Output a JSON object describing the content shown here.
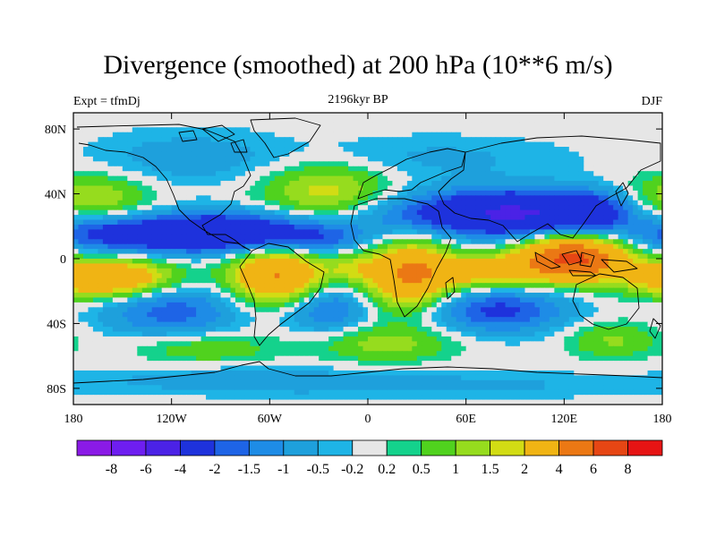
{
  "title": "Divergence (smoothed) at 200 hPa (10**6 m/s)",
  "subtitle_left": "Expt = tfmDj",
  "subtitle_center": "2196kyr BP",
  "subtitle_right": "DJF",
  "lat_ticks": [
    {
      "value": 80,
      "label": "80N"
    },
    {
      "value": 40,
      "label": "40N"
    },
    {
      "value": 0,
      "label": "0"
    },
    {
      "value": -40,
      "label": "40S"
    },
    {
      "value": -80,
      "label": "80S"
    }
  ],
  "lon_ticks": [
    {
      "value": -180,
      "label": "180"
    },
    {
      "value": -120,
      "label": "120W"
    },
    {
      "value": -60,
      "label": "60W"
    },
    {
      "value": 0,
      "label": "0"
    },
    {
      "value": 60,
      "label": "60E"
    },
    {
      "value": 120,
      "label": "120E"
    },
    {
      "value": 180,
      "label": "180"
    }
  ],
  "colorbar": {
    "colors": [
      "#8a1ae6",
      "#6e1ef0",
      "#4b22e6",
      "#1e32dc",
      "#1e64e6",
      "#1e8ce6",
      "#1ea0dc",
      "#1eb4e6",
      "#e6e6e6",
      "#14d28c",
      "#50d21e",
      "#96dc1e",
      "#d2dc14",
      "#f0b414",
      "#eb7814",
      "#e64614",
      "#e61414"
    ],
    "labels": [
      "-8",
      "-6",
      "-4",
      "-2",
      "-1.5",
      "-1",
      "-0.5",
      "-0.2",
      "0.2",
      "0.5",
      "1",
      "1.5",
      "2",
      "4",
      "6",
      "8"
    ]
  },
  "chart_data": {
    "type": "heatmap",
    "title": "Divergence (smoothed) at 200 hPa (10**6 m/s)",
    "variable": "divergence at 200 hPa",
    "units": "10**6 m/s",
    "xlim": [
      -180,
      180
    ],
    "ylim": [
      -90,
      90
    ],
    "levels": [
      -8,
      -6,
      -4,
      -2,
      -1.5,
      -1,
      -0.5,
      -0.2,
      0.2,
      0.5,
      1,
      1.5,
      2,
      4,
      6,
      8
    ],
    "features": [
      {
        "name": "maritime-continent-divergence",
        "lon": 125,
        "lat": 0,
        "value": 6
      },
      {
        "name": "south-america-divergence",
        "lon": -55,
        "lat": -10,
        "value": 4
      },
      {
        "name": "africa-divergence",
        "lon": 25,
        "lat": -10,
        "value": 4
      },
      {
        "name": "central-pacific-divergence",
        "lon": -160,
        "lat": -12,
        "value": 4
      },
      {
        "name": "tropical-atlantic-convergence",
        "lon": -85,
        "lat": 15,
        "value": -3
      },
      {
        "name": "central-pacific-convergence",
        "lon": -150,
        "lat": 15,
        "value": -2.5
      },
      {
        "name": "asia-subtropical-convergence",
        "lon": 85,
        "lat": 28,
        "value": -4
      },
      {
        "name": "south-indian-convergence",
        "lon": 80,
        "lat": -30,
        "value": -2
      },
      {
        "name": "north-atlantic-divergence",
        "lon": -25,
        "lat": 42,
        "value": 1.5
      },
      {
        "name": "north-pacific-divergence",
        "lon": -170,
        "lat": 38,
        "value": 1.5
      }
    ]
  }
}
